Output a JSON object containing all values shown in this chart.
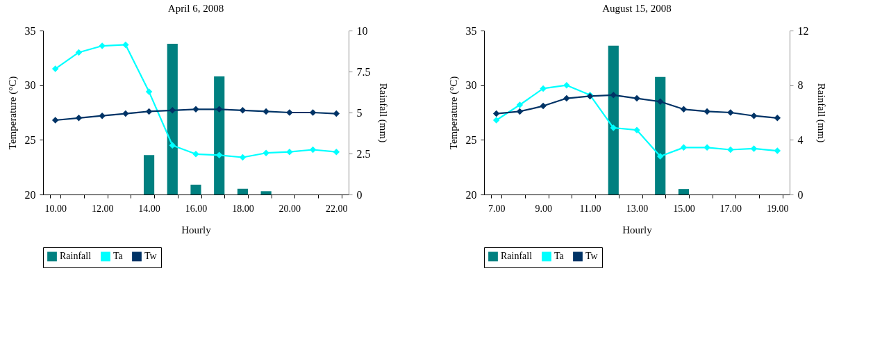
{
  "chart_data": [
    {
      "type": "line",
      "title": "April 6, 2008",
      "xlabel": "Hourly",
      "ylabel": "Temperature (°C)",
      "y2label": "Rainfall (mm)",
      "categories": [
        "10.00",
        null,
        "12.00",
        null,
        "14.00",
        null,
        "16.00",
        null,
        "18.00",
        null,
        "20.00",
        null,
        "22.00"
      ],
      "ylim": [
        20,
        35
      ],
      "yticks": [
        20,
        25,
        30,
        35
      ],
      "y2lim": [
        0,
        10
      ],
      "y2ticks": [
        0,
        2.5,
        5,
        7.5,
        10
      ],
      "legend": "bottom",
      "marker": "diamond",
      "series": [
        {
          "name": "Rainfall",
          "type": "bar",
          "axis": "y2",
          "color": "#008080",
          "values": [
            null,
            null,
            null,
            null,
            2.4,
            9.2,
            0.6,
            7.2,
            0.35,
            0.2,
            null,
            null,
            null
          ]
        },
        {
          "name": "Ta",
          "color": "#00ffff",
          "values": [
            31.5,
            33.0,
            33.6,
            33.7,
            29.4,
            24.5,
            23.7,
            23.6,
            23.4,
            23.8,
            23.9,
            24.1,
            23.9
          ]
        },
        {
          "name": "Tw",
          "color": "#003366",
          "values": [
            26.8,
            27.0,
            27.2,
            27.4,
            27.6,
            27.7,
            27.8,
            27.8,
            27.7,
            27.6,
            27.5,
            27.5,
            27.4
          ]
        }
      ]
    },
    {
      "type": "line",
      "title": "August 15, 2008",
      "xlabel": "Hourly",
      "ylabel": "Temperature (°C)",
      "y2label": "Rainfall (mm)",
      "categories": [
        "7.00",
        null,
        "9.00",
        null,
        "11.00",
        null,
        "13.00",
        null,
        "15.00",
        null,
        "17.00",
        null,
        "19.00"
      ],
      "ylim": [
        20,
        35
      ],
      "yticks": [
        20,
        25,
        30,
        35
      ],
      "y2lim": [
        0,
        12
      ],
      "y2ticks": [
        0,
        4,
        8,
        12
      ],
      "legend": "bottom",
      "marker": "diamond",
      "series": [
        {
          "name": "Rainfall",
          "type": "bar",
          "axis": "y2",
          "color": "#008080",
          "values": [
            null,
            null,
            null,
            null,
            null,
            10.9,
            null,
            8.6,
            0.4,
            null,
            null,
            null,
            null
          ]
        },
        {
          "name": "Ta",
          "color": "#00ffff",
          "values": [
            26.8,
            28.2,
            29.7,
            30.0,
            29.1,
            26.1,
            25.9,
            23.5,
            24.3,
            24.3,
            24.1,
            24.2,
            24.0
          ]
        },
        {
          "name": "Tw",
          "color": "#003366",
          "values": [
            27.4,
            27.6,
            28.1,
            28.8,
            29.0,
            29.1,
            28.8,
            28.5,
            27.8,
            27.6,
            27.5,
            27.2,
            27.0
          ]
        }
      ]
    }
  ]
}
